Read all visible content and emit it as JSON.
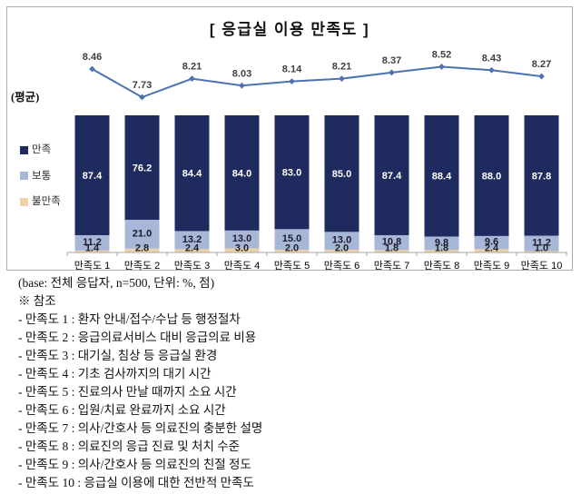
{
  "chart": {
    "title": "[ 응급실 이용 만족도 ]",
    "y_axis_note": "(평균)",
    "border_color": "#adadad",
    "axis_color": "#a6a6a6"
  },
  "legend": {
    "items": [
      {
        "label": "만족",
        "color": "#1f2b5e"
      },
      {
        "label": "보통",
        "color": "#a8b7d7"
      },
      {
        "label": "불만족",
        "color": "#eed3a8"
      }
    ]
  },
  "chart_data": {
    "type": "bar",
    "subtype": "100% stacked columns with average score line",
    "categories": [
      "만족도 1",
      "만족도 2",
      "만족도 3",
      "만족도 4",
      "만족도 5",
      "만족도 6",
      "만족도 7",
      "만족도 8",
      "만족도 9",
      "만족도 10"
    ],
    "series": [
      {
        "name": "만족",
        "color": "#1f2b5e",
        "label_color": "#ffffff",
        "values": [
          87.4,
          76.2,
          84.4,
          84.0,
          83.0,
          85.0,
          87.4,
          88.4,
          88.0,
          87.8
        ]
      },
      {
        "name": "보통",
        "color": "#a8b7d7",
        "label_color": "#1a1a2e",
        "values": [
          11.2,
          21.0,
          13.2,
          13.0,
          15.0,
          13.0,
          10.8,
          9.8,
          9.6,
          11.2
        ]
      },
      {
        "name": "불만족",
        "color": "#eed3a8",
        "label_color": "#222222",
        "values": [
          1.4,
          2.8,
          2.4,
          3.0,
          2.0,
          2.0,
          1.8,
          1.8,
          2.4,
          1.0
        ]
      }
    ],
    "line": {
      "name": "평균",
      "color": "#4d72b0",
      "label_color": "#404040",
      "values": [
        8.46,
        7.73,
        8.21,
        8.03,
        8.14,
        8.21,
        8.37,
        8.52,
        8.43,
        8.27
      ]
    },
    "ylim": [
      0,
      100
    ],
    "unit": "%, 점",
    "legend_position": "left",
    "grid": false
  },
  "footnote": "(base: 전체 응답자, n=500, 단위: %, 점)",
  "reference": {
    "header": "※ 참조",
    "items": [
      "- 만족도 1 : 환자 안내/접수/수납 등 행정절차",
      "- 만족도 2 : 응급의료서비스 대비 응급의료 비용",
      "- 만족도 3 : 대기실, 침상 등 응급실 환경",
      "- 만족도 4 : 기초 검사까지의 대기 시간",
      "- 만족도 5 : 진료의사 만날 때까지 소요 시간",
      "- 만족도 6 : 입원/치료 완료까지 소요 시간",
      "- 만족도 7 : 의사/간호사 등 의료진의 충분한 설명",
      "- 만족도 8 : 의료진의 응급 진료 및 처치 수준",
      "- 만족도 9 : 의사/간호사 등 의료진의 친절 정도",
      "- 만족도 10 : 응급실 이용에 대한 전반적 만족도"
    ]
  }
}
